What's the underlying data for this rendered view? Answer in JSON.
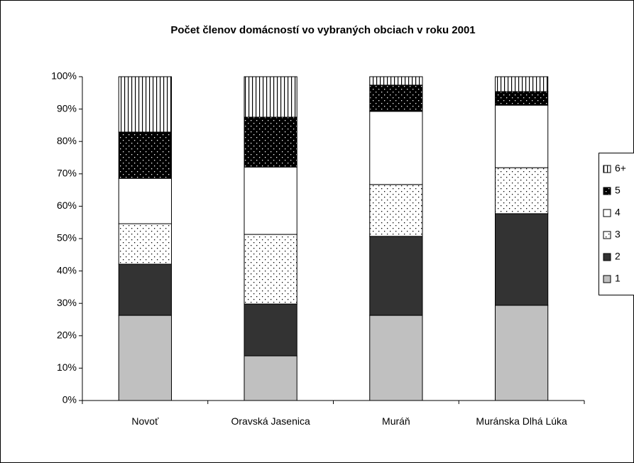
{
  "chart_data": {
    "type": "stacked_bar_100",
    "title": "Počet členov domácností vo vybraných obciach v roku 2001",
    "categories": [
      "Novoť",
      "Oravská Jasenica",
      "Muráň",
      "Muránska Dlhá Lúka"
    ],
    "series": [
      {
        "name": "1",
        "color": "#c0c0c0",
        "pattern": "solid",
        "values": [
          26.3,
          13.8,
          26.3,
          29.4
        ]
      },
      {
        "name": "2",
        "color": "#333333",
        "pattern": "solid",
        "values": [
          15.8,
          16.0,
          24.4,
          28.3
        ]
      },
      {
        "name": "3",
        "color": "#ffffff",
        "pattern": "dots",
        "values": [
          12.5,
          21.5,
          16.0,
          14.2
        ]
      },
      {
        "name": "4",
        "color": "#ffffff",
        "pattern": "solid",
        "values": [
          14.0,
          20.8,
          22.6,
          19.3
        ]
      },
      {
        "name": "5",
        "color": "#000000",
        "pattern": "dots",
        "values": [
          14.3,
          15.4,
          8.1,
          4.2
        ]
      },
      {
        "name": "6+",
        "color": "#ffffff",
        "pattern": "vstripes",
        "values": [
          17.1,
          12.5,
          2.6,
          4.6
        ]
      }
    ],
    "ylim": [
      0,
      100
    ],
    "yticks": [
      {
        "value": 0,
        "label": "0%"
      },
      {
        "value": 10,
        "label": "10%"
      },
      {
        "value": 20,
        "label": "20%"
      },
      {
        "value": 30,
        "label": "30%"
      },
      {
        "value": 40,
        "label": "40%"
      },
      {
        "value": 50,
        "label": "50%"
      },
      {
        "value": 60,
        "label": "60%"
      },
      {
        "value": 70,
        "label": "70%"
      },
      {
        "value": 80,
        "label": "80%"
      },
      {
        "value": 90,
        "label": "90%"
      },
      {
        "value": 100,
        "label": "100%"
      }
    ],
    "legend": "right"
  }
}
